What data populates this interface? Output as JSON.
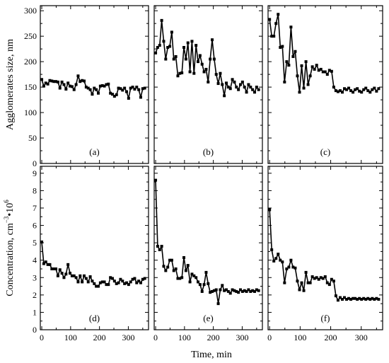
{
  "chart_data": {
    "type": "line",
    "layout": "2 rows x 3 columns, shared axes",
    "x_axis_title": "Time, min",
    "x_range": [
      -5,
      370
    ],
    "x_ticks": [
      0,
      100,
      200,
      300
    ],
    "rows": [
      {
        "ylabel": "Agglomerates size, nm",
        "ylim": [
          0,
          310
        ],
        "yticks": [
          0,
          50,
          100,
          150,
          200,
          250,
          300
        ]
      },
      {
        "ylabel_parts": [
          "Concentration, cm",
          "−3",
          "•10",
          "6"
        ],
        "ylim": [
          0,
          9.4
        ],
        "yticks": [
          0,
          1,
          2,
          3,
          4,
          5,
          6,
          7,
          8,
          9
        ]
      }
    ],
    "panels": [
      {
        "label": "(a)",
        "row": 0,
        "col": 0,
        "x": [
          0,
          7,
          14,
          21,
          28,
          35,
          42,
          49,
          56,
          63,
          70,
          77,
          84,
          91,
          98,
          105,
          112,
          119,
          126,
          133,
          140,
          147,
          154,
          161,
          168,
          175,
          182,
          189,
          196,
          203,
          210,
          217,
          224,
          231,
          238,
          245,
          252,
          259,
          266,
          273,
          280,
          287,
          294,
          301,
          308,
          315,
          322,
          329,
          336,
          343,
          350,
          357
        ],
        "y": [
          165,
          152,
          158,
          156,
          163,
          162,
          161,
          161,
          160,
          148,
          160,
          155,
          146,
          158,
          152,
          151,
          145,
          155,
          172,
          161,
          163,
          162,
          150,
          148,
          145,
          136,
          148,
          145,
          138,
          152,
          153,
          152,
          155,
          156,
          138,
          136,
          132,
          135,
          148,
          147,
          144,
          148,
          141,
          128,
          148,
          150,
          146,
          150,
          145,
          130,
          147,
          148
        ]
      },
      {
        "label": "(b)",
        "row": 0,
        "col": 1,
        "x": [
          0,
          7,
          14,
          21,
          28,
          35,
          42,
          49,
          56,
          63,
          70,
          77,
          84,
          91,
          98,
          105,
          112,
          119,
          126,
          133,
          140,
          147,
          154,
          161,
          168,
          175,
          182,
          189,
          196,
          203,
          210,
          217,
          224,
          231,
          238,
          245,
          252,
          259,
          266,
          273,
          280,
          287,
          294,
          301,
          308,
          315,
          322,
          329,
          336,
          343,
          350,
          357
        ],
        "y": [
          217,
          228,
          232,
          281,
          240,
          205,
          228,
          230,
          258,
          205,
          210,
          172,
          177,
          178,
          228,
          205,
          237,
          180,
          240,
          177,
          232,
          200,
          212,
          195,
          180,
          185,
          160,
          205,
          243,
          205,
          175,
          157,
          177,
          155,
          133,
          158,
          150,
          147,
          165,
          160,
          150,
          145,
          155,
          160,
          150,
          140,
          155,
          150,
          145,
          140,
          150,
          145
        ]
      },
      {
        "label": "(c)",
        "row": 0,
        "col": 2,
        "x": [
          0,
          7,
          14,
          21,
          28,
          35,
          42,
          49,
          56,
          63,
          70,
          77,
          84,
          91,
          98,
          105,
          112,
          119,
          126,
          133,
          140,
          147,
          154,
          161,
          168,
          175,
          182,
          189,
          196,
          203,
          210,
          217,
          224,
          231,
          238,
          245,
          252,
          259,
          266,
          273,
          280,
          287,
          294,
          301,
          308,
          315,
          322,
          329,
          336,
          343,
          350,
          357
        ],
        "y": [
          283,
          250,
          250,
          275,
          293,
          228,
          230,
          160,
          200,
          193,
          268,
          210,
          220,
          172,
          140,
          192,
          148,
          200,
          155,
          172,
          190,
          185,
          193,
          183,
          185,
          180,
          180,
          175,
          183,
          181,
          150,
          143,
          141,
          143,
          140,
          147,
          145,
          148,
          143,
          140,
          145,
          147,
          142,
          140,
          145,
          148,
          143,
          140,
          145,
          148,
          142,
          147
        ]
      },
      {
        "label": "(d)",
        "row": 1,
        "col": 0,
        "x": [
          0,
          7,
          14,
          21,
          28,
          35,
          42,
          49,
          56,
          63,
          70,
          77,
          84,
          91,
          98,
          105,
          112,
          119,
          126,
          133,
          140,
          147,
          154,
          161,
          168,
          175,
          182,
          189,
          196,
          203,
          210,
          217,
          224,
          231,
          238,
          245,
          252,
          259,
          266,
          273,
          280,
          287,
          294,
          301,
          308,
          315,
          322,
          329,
          336,
          343,
          350,
          357
        ],
        "y": [
          5.05,
          3.8,
          3.9,
          3.75,
          3.75,
          3.5,
          3.5,
          3.5,
          3.1,
          3.45,
          3.25,
          3.0,
          3.2,
          3.75,
          3.25,
          3.1,
          3.1,
          3.0,
          2.75,
          3.1,
          2.75,
          3.1,
          2.95,
          2.75,
          3.05,
          2.8,
          2.65,
          2.5,
          2.5,
          2.7,
          2.75,
          2.75,
          2.6,
          2.6,
          3.0,
          2.95,
          2.8,
          2.65,
          2.7,
          2.9,
          2.8,
          2.65,
          2.7,
          2.6,
          2.75,
          2.9,
          2.95,
          2.7,
          2.8,
          2.7,
          2.9,
          2.95
        ]
      },
      {
        "label": "(e)",
        "row": 1,
        "col": 1,
        "x": [
          0,
          7,
          14,
          21,
          28,
          35,
          42,
          49,
          56,
          63,
          70,
          77,
          84,
          91,
          98,
          105,
          112,
          119,
          126,
          133,
          140,
          147,
          154,
          161,
          168,
          175,
          182,
          189,
          196,
          203,
          210,
          217,
          224,
          231,
          238,
          245,
          252,
          259,
          266,
          273,
          280,
          287,
          294,
          301,
          308,
          315,
          322,
          329,
          336,
          343,
          350,
          357
        ],
        "y": [
          8.6,
          4.8,
          4.6,
          4.8,
          3.65,
          3.4,
          3.6,
          4.0,
          4.0,
          3.4,
          3.5,
          2.95,
          2.95,
          3.0,
          4.15,
          3.4,
          3.7,
          2.75,
          3.2,
          3.1,
          3.0,
          2.75,
          2.6,
          2.2,
          2.6,
          3.3,
          2.65,
          2.15,
          2.2,
          2.25,
          2.3,
          1.5,
          2.3,
          2.55,
          2.25,
          2.3,
          2.2,
          2.1,
          2.3,
          2.25,
          2.2,
          2.15,
          2.3,
          2.2,
          2.25,
          2.2,
          2.3,
          2.2,
          2.25,
          2.2,
          2.3,
          2.25
        ]
      },
      {
        "label": "(f)",
        "row": 1,
        "col": 2,
        "x": [
          0,
          7,
          14,
          21,
          28,
          35,
          42,
          49,
          56,
          63,
          70,
          77,
          84,
          91,
          98,
          105,
          112,
          119,
          126,
          133,
          140,
          147,
          154,
          161,
          168,
          175,
          182,
          189,
          196,
          203,
          210,
          217,
          224,
          231,
          238,
          245,
          252,
          259,
          266,
          273,
          280,
          287,
          294,
          301,
          308,
          315,
          322,
          329,
          336,
          343,
          350,
          357
        ],
        "y": [
          6.9,
          4.6,
          3.95,
          4.1,
          4.35,
          4.0,
          3.9,
          2.7,
          3.5,
          3.6,
          4.0,
          3.6,
          3.55,
          2.8,
          2.3,
          2.7,
          2.25,
          3.3,
          2.7,
          2.7,
          3.05,
          2.95,
          3.0,
          2.9,
          3.0,
          2.95,
          3.05,
          2.7,
          2.6,
          2.9,
          2.8,
          1.95,
          1.7,
          1.85,
          1.75,
          1.85,
          1.75,
          1.8,
          1.75,
          1.8,
          1.8,
          1.75,
          1.8,
          1.75,
          1.8,
          1.75,
          1.8,
          1.75,
          1.8,
          1.75,
          1.8,
          1.75
        ]
      }
    ]
  }
}
